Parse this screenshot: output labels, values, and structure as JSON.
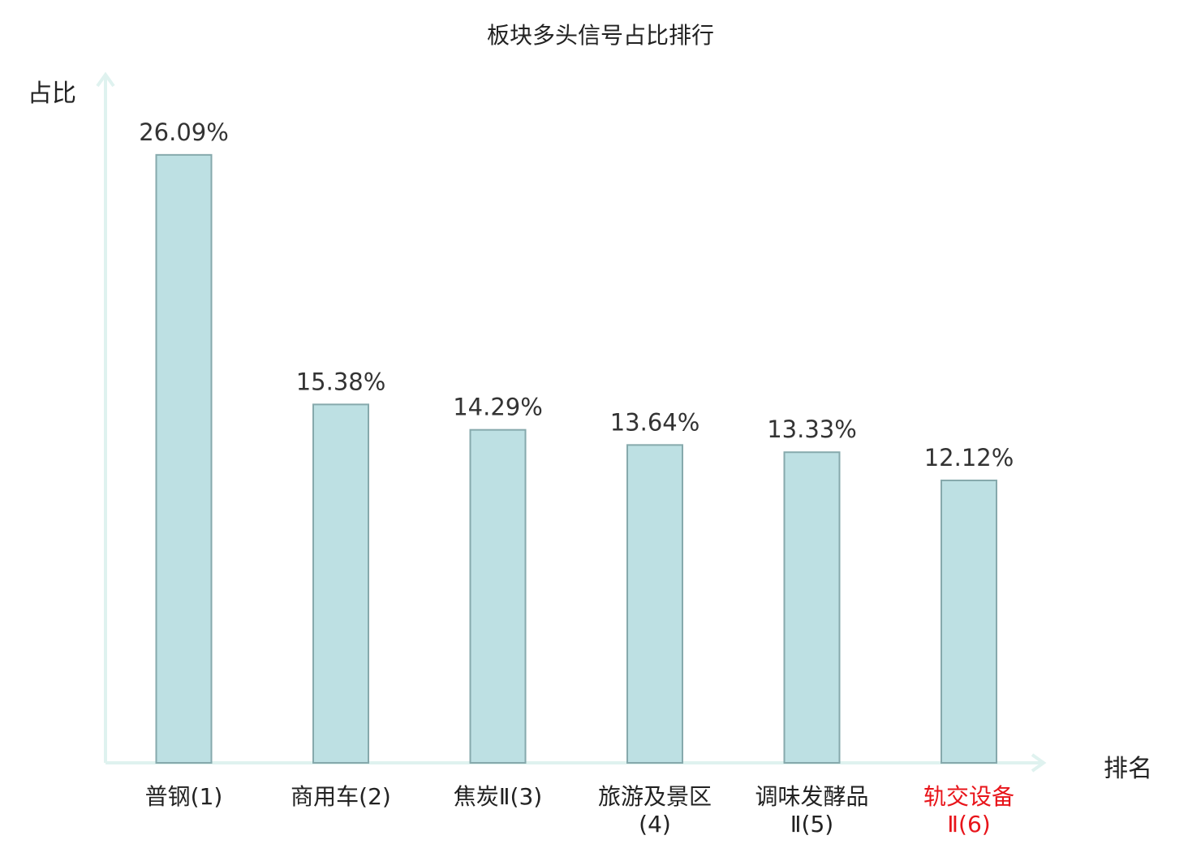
{
  "chart_data": {
    "type": "bar",
    "title": "板块多头信号占比排行",
    "ylabel": "占比",
    "xlabel": "排名",
    "ylim": [
      0,
      28
    ],
    "grid": false,
    "categories": [
      "普钢(1)",
      "商用车(2)",
      "焦炭Ⅱ(3)",
      "旅游及景区(4)",
      "调味发酵品Ⅱ(5)",
      "轨交设备Ⅱ(6)"
    ],
    "values": [
      26.09,
      15.38,
      14.29,
      13.64,
      13.33,
      12.12
    ],
    "value_labels": [
      "26.09%",
      "15.38%",
      "14.29%",
      "13.64%",
      "13.33%",
      "12.12%"
    ],
    "highlight_index": 5
  },
  "colors": {
    "bar_fill": "#bde0e3",
    "bar_stroke": "#86a9ac",
    "axis": "#dff2ef",
    "highlight": "#e8141a",
    "text": "#222222",
    "value_text": "#333333"
  }
}
